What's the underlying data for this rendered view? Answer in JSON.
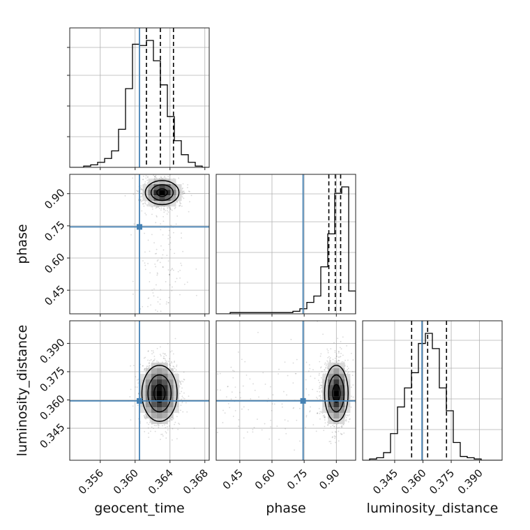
{
  "chart_data": {
    "type": "corner",
    "parameters": [
      "geocent_time",
      "phase",
      "luminosity_distance"
    ],
    "truth": {
      "geocent_time": 0.3605,
      "phase": 0.745,
      "luminosity_distance": 0.3595
    },
    "truth_color": "#4682b4",
    "ranges": {
      "geocent_time": [
        0.3525,
        0.3685
      ],
      "phase": [
        0.34,
        0.99
      ],
      "luminosity_distance": [
        0.328,
        0.402
      ]
    },
    "ticks": {
      "geocent_time": [
        "0.356",
        "0.360",
        "0.364",
        "0.368"
      ],
      "phase": [
        "0.45",
        "0.60",
        "0.75",
        "0.90"
      ],
      "luminosity_distance": [
        "0.345",
        "0.360",
        "0.375",
        "0.390"
      ]
    },
    "marginals": {
      "geocent_time": {
        "bin_edges": [
          0.3525,
          0.3533,
          0.3541,
          0.3549,
          0.3557,
          0.3565,
          0.3573,
          0.3581,
          0.3589,
          0.3597,
          0.3605,
          0.3613,
          0.3621,
          0.3629,
          0.3637,
          0.3645,
          0.3653,
          0.3661,
          0.3669,
          0.3677,
          0.3685
        ],
        "counts": [
          0,
          0,
          0.01,
          0.02,
          0.04,
          0.07,
          0.13,
          0.3,
          0.62,
          0.97,
          0.96,
          1.0,
          0.84,
          0.65,
          0.4,
          0.21,
          0.1,
          0.04,
          0.01,
          0
        ],
        "quantiles": [
          0.3613,
          0.3629,
          0.3644
        ]
      },
      "phase": {
        "bin_edges": [
          0.34,
          0.3725,
          0.405,
          0.4375,
          0.47,
          0.5025,
          0.535,
          0.5675,
          0.6,
          0.6325,
          0.665,
          0.6975,
          0.73,
          0.7625,
          0.795,
          0.8275,
          0.86,
          0.8925,
          0.925,
          0.9575,
          0.99
        ],
        "counts": [
          0,
          0,
          0.01,
          0.01,
          0.01,
          0.01,
          0.01,
          0.01,
          0.01,
          0.01,
          0.01,
          0.02,
          0.04,
          0.09,
          0.14,
          0.37,
          0.63,
          0.95,
          1.0,
          0.18
        ],
        "quantiles": [
          0.865,
          0.895,
          0.92
        ]
      },
      "luminosity_distance": {
        "bin_edges": [
          0.328,
          0.3317,
          0.3354,
          0.3391,
          0.3428,
          0.3465,
          0.3502,
          0.3539,
          0.3576,
          0.3613,
          0.365,
          0.3687,
          0.3724,
          0.3761,
          0.3798,
          0.3835,
          0.3872,
          0.3909,
          0.3946,
          0.3983,
          0.402
        ],
        "counts": [
          0,
          0.01,
          0.02,
          0.06,
          0.21,
          0.42,
          0.57,
          0.69,
          0.92,
          1.0,
          0.88,
          0.57,
          0.39,
          0.14,
          0.03,
          0.02,
          0.01,
          0,
          0,
          0
        ],
        "quantiles": [
          0.354,
          0.3625,
          0.3725
        ]
      }
    },
    "joint": [
      {
        "x": "geocent_time",
        "y": "phase",
        "mean": [
          0.3631,
          0.905
        ],
        "sd": [
          0.00105,
          0.032
        ]
      },
      {
        "x": "geocent_time",
        "y": "luminosity_distance",
        "mean": [
          0.3628,
          0.3635
        ],
        "sd": [
          0.0011,
          0.0085
        ]
      },
      {
        "x": "phase",
        "y": "luminosity_distance",
        "mean": [
          0.9,
          0.3635
        ],
        "sd": [
          0.03,
          0.0085
        ]
      }
    ]
  }
}
